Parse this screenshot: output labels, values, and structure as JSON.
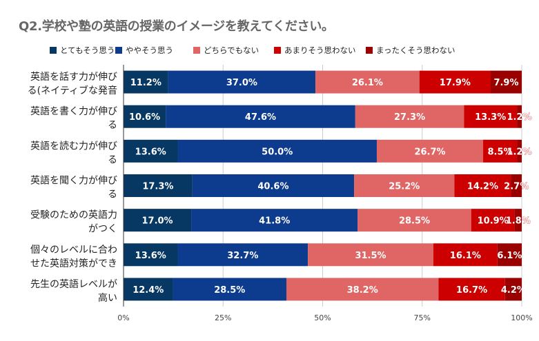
{
  "chart_data": {
    "type": "bar",
    "orientation": "horizontal",
    "stacked": true,
    "percent_stacked": true,
    "title": "Q2.学校や塾の英語の授業のイメージを教えてください。",
    "xlabel": "",
    "ylabel": "",
    "xlim": [
      0,
      100
    ],
    "x_ticks": [
      "0%",
      "25%",
      "50%",
      "75%",
      "100%"
    ],
    "x_tick_values": [
      0,
      25,
      50,
      75,
      100
    ],
    "legend_position": "top",
    "categories": [
      [
        "英語を話す力が伸び",
        "る(ネイティブな発音"
      ],
      [
        "英語を書く力が伸び",
        "る"
      ],
      [
        "英語を読む力が伸び",
        "る"
      ],
      [
        "英語を聞く力が伸び",
        "る"
      ],
      [
        "受験のための英語力",
        "がつく"
      ],
      [
        "個々のレベルに合わ",
        "せた英語対策ができ"
      ],
      [
        "先生の英語レベルが",
        "高い"
      ]
    ],
    "series": [
      {
        "name": "とてもそう思う",
        "color": "#073763",
        "values": [
          11.2,
          10.6,
          13.6,
          17.3,
          17.0,
          13.6,
          12.4
        ],
        "labels": [
          "11.2%",
          "10.6%",
          "13.6%",
          "17.3%",
          "17.0%",
          "13.6%",
          "12.4%"
        ]
      },
      {
        "name": "ややそう思う",
        "color": "#0d3b8e",
        "values": [
          37.0,
          47.6,
          50.0,
          40.6,
          41.8,
          32.7,
          28.5
        ],
        "labels": [
          "37.0%",
          "47.6%",
          "50.0%",
          "40.6%",
          "41.8%",
          "32.7%",
          "28.5%"
        ]
      },
      {
        "name": "どちらでもない",
        "color": "#e06666",
        "values": [
          26.1,
          27.3,
          26.7,
          25.2,
          28.5,
          31.5,
          38.2
        ],
        "labels": [
          "26.1%",
          "27.3%",
          "26.7%",
          "25.2%",
          "28.5%",
          "31.5%",
          "38.2%"
        ]
      },
      {
        "name": "あまりそう思わない",
        "color": "#cc0000",
        "values": [
          17.9,
          13.3,
          8.5,
          14.2,
          10.9,
          16.1,
          16.7
        ],
        "labels": [
          "17.9%",
          "13.3%",
          "8.5%",
          "14.2%",
          "10.9%",
          "16.1%",
          "16.7%"
        ]
      },
      {
        "name": "まったくそう思わない",
        "color": "#990000",
        "values": [
          7.9,
          1.2,
          1.2,
          2.7,
          1.8,
          6.1,
          4.2
        ],
        "labels": [
          "7.9%",
          "1.2%",
          "1.2%",
          "2.7%",
          "1.8%",
          "6.1%",
          "4.2%"
        ]
      }
    ]
  }
}
